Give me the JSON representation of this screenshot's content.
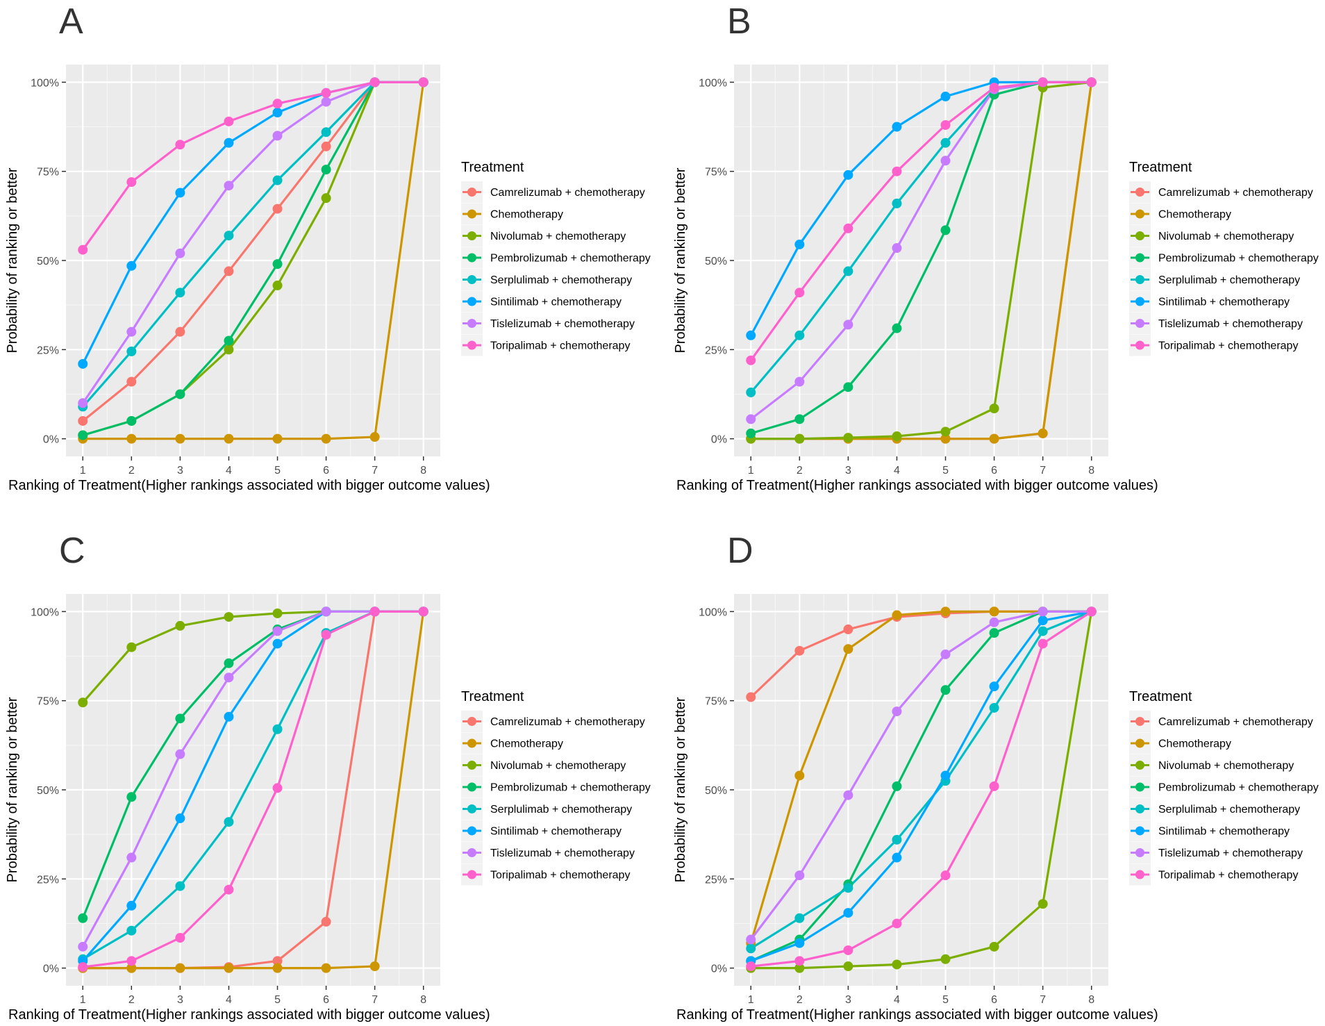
{
  "colors": {
    "Camrelizumab + chemotherapy": "#F8766D",
    "Chemotherapy": "#CD9600",
    "Nivolumab + chemotherapy": "#7CAE00",
    "Pembrolizumab + chemotherapy": "#00BE67",
    "Serplulimab + chemotherapy": "#00BFC4",
    "Sintilimab + chemotherapy": "#00A9FF",
    "Tislelizumab + chemotherapy": "#C77CFF",
    "Toripalimab + chemotherapy": "#FF61CC"
  },
  "chart_data": [
    {
      "panel": "A",
      "type": "line",
      "xlabel": "Ranking of Treatment(Higher rankings associated with bigger outcome values)",
      "ylabel": "Probability of ranking or better",
      "x": [
        1,
        2,
        3,
        4,
        5,
        6,
        7,
        8
      ],
      "yticks": [
        "0%",
        "25%",
        "50%",
        "75%",
        "100%"
      ],
      "ylim": [
        0,
        100
      ],
      "legend_title": "Treatment",
      "series": [
        {
          "name": "Camrelizumab + chemotherapy",
          "values": [
            5,
            16,
            30,
            47,
            64.5,
            82,
            100,
            100
          ]
        },
        {
          "name": "Chemotherapy",
          "values": [
            0,
            0,
            0,
            0,
            0,
            0,
            0.5,
            100
          ]
        },
        {
          "name": "Nivolumab + chemotherapy",
          "values": [
            1,
            5,
            12.5,
            25,
            43,
            67.5,
            100,
            100
          ]
        },
        {
          "name": "Pembrolizumab + chemotherapy",
          "values": [
            1,
            5,
            12.5,
            27.5,
            49,
            75.5,
            100,
            100
          ]
        },
        {
          "name": "Serplulimab + chemotherapy",
          "values": [
            9,
            24.5,
            41,
            57,
            72.5,
            86,
            100,
            100
          ]
        },
        {
          "name": "Sintilimab + chemotherapy",
          "values": [
            21,
            48.5,
            69,
            83,
            91.5,
            97,
            100,
            100
          ]
        },
        {
          "name": "Tislelizumab + chemotherapy",
          "values": [
            10,
            30,
            52,
            71,
            85,
            94.5,
            100,
            100
          ]
        },
        {
          "name": "Toripalimab + chemotherapy",
          "values": [
            53,
            72,
            82.5,
            89,
            94,
            97,
            100,
            100
          ]
        }
      ]
    },
    {
      "panel": "B",
      "type": "line",
      "xlabel": "Ranking of Treatment(Higher rankings associated with bigger outcome values)",
      "ylabel": "Probability of ranking or better",
      "x": [
        1,
        2,
        3,
        4,
        5,
        6,
        7,
        8
      ],
      "yticks": [
        "0%",
        "25%",
        "50%",
        "75%",
        "100%"
      ],
      "ylim": [
        0,
        100
      ],
      "legend_title": "Treatment",
      "series": [
        {
          "name": "Camrelizumab + chemotherapy",
          "values": [
            0,
            0,
            0,
            0,
            0,
            0,
            1.5,
            100
          ]
        },
        {
          "name": "Chemotherapy",
          "values": [
            0,
            0,
            0,
            0,
            0,
            0,
            1.5,
            100
          ]
        },
        {
          "name": "Nivolumab + chemotherapy",
          "values": [
            0,
            0,
            0.3,
            0.7,
            2,
            8.5,
            98.5,
            100
          ]
        },
        {
          "name": "Pembrolizumab + chemotherapy",
          "values": [
            1.5,
            5.5,
            14.5,
            31,
            58.5,
            96.5,
            100,
            100
          ]
        },
        {
          "name": "Serplulimab + chemotherapy",
          "values": [
            13,
            29,
            47,
            66,
            83,
            98,
            100,
            100
          ]
        },
        {
          "name": "Sintilimab + chemotherapy",
          "values": [
            29,
            54.5,
            74,
            87.5,
            96,
            100,
            100,
            100
          ]
        },
        {
          "name": "Tislelizumab + chemotherapy",
          "values": [
            5.5,
            16,
            32,
            53.5,
            78,
            98,
            100,
            100
          ]
        },
        {
          "name": "Toripalimab + chemotherapy",
          "values": [
            22,
            41,
            59,
            75,
            88,
            98.5,
            100,
            100
          ]
        }
      ]
    },
    {
      "panel": "C",
      "type": "line",
      "xlabel": "Ranking of Treatment(Higher rankings associated with bigger outcome values)",
      "ylabel": "Probability of ranking or better",
      "x": [
        1,
        2,
        3,
        4,
        5,
        6,
        7,
        8
      ],
      "yticks": [
        "0%",
        "25%",
        "50%",
        "75%",
        "100%"
      ],
      "ylim": [
        0,
        100
      ],
      "legend_title": "Treatment",
      "series": [
        {
          "name": "Camrelizumab + chemotherapy",
          "values": [
            0,
            0,
            0,
            0.3,
            2,
            13,
            100,
            100
          ]
        },
        {
          "name": "Chemotherapy",
          "values": [
            0,
            0,
            0,
            0,
            0,
            0,
            0.5,
            100
          ]
        },
        {
          "name": "Nivolumab + chemotherapy",
          "values": [
            74.5,
            90,
            96,
            98.5,
            99.5,
            100,
            100,
            100
          ]
        },
        {
          "name": "Pembrolizumab + chemotherapy",
          "values": [
            14,
            48,
            70,
            85.5,
            95,
            100,
            100,
            100
          ]
        },
        {
          "name": "Serplulimab + chemotherapy",
          "values": [
            2.5,
            10.5,
            23,
            41,
            67,
            94,
            100,
            100
          ]
        },
        {
          "name": "Sintilimab + chemotherapy",
          "values": [
            2,
            17.5,
            42,
            70.5,
            91,
            100,
            100,
            100
          ]
        },
        {
          "name": "Tislelizumab + chemotherapy",
          "values": [
            6,
            31,
            60,
            81.5,
            94.5,
            100,
            100,
            100
          ]
        },
        {
          "name": "Toripalimab + chemotherapy",
          "values": [
            0.3,
            2,
            8.5,
            22,
            50.5,
            93.5,
            100,
            100
          ]
        }
      ]
    },
    {
      "panel": "D",
      "type": "line",
      "xlabel": "Ranking of Treatment(Higher rankings associated with bigger outcome values)",
      "ylabel": "Probability of ranking or better",
      "x": [
        1,
        2,
        3,
        4,
        5,
        6,
        7,
        8
      ],
      "yticks": [
        "0%",
        "25%",
        "50%",
        "75%",
        "100%"
      ],
      "ylim": [
        0,
        100
      ],
      "legend_title": "Treatment",
      "series": [
        {
          "name": "Camrelizumab + chemotherapy",
          "values": [
            76,
            89,
            95,
            98.5,
            99.5,
            100,
            100,
            100
          ]
        },
        {
          "name": "Chemotherapy",
          "values": [
            7,
            54,
            89.5,
            99,
            100,
            100,
            100,
            100
          ]
        },
        {
          "name": "Nivolumab + chemotherapy",
          "values": [
            0,
            0,
            0.5,
            1,
            2.5,
            6,
            18,
            100
          ]
        },
        {
          "name": "Pembrolizumab + chemotherapy",
          "values": [
            2,
            8,
            23.5,
            51,
            78,
            94,
            100,
            100
          ]
        },
        {
          "name": "Serplulimab + chemotherapy",
          "values": [
            5.5,
            14,
            22.5,
            36,
            52.5,
            73,
            94.5,
            100
          ]
        },
        {
          "name": "Sintilimab + chemotherapy",
          "values": [
            2,
            7,
            15.5,
            31,
            54,
            79,
            97.5,
            100
          ]
        },
        {
          "name": "Tislelizumab + chemotherapy",
          "values": [
            8,
            26,
            48.5,
            72,
            88,
            97,
            100,
            100
          ]
        },
        {
          "name": "Toripalimab + chemotherapy",
          "values": [
            0.5,
            2,
            5,
            12.5,
            26,
            51,
            91,
            100
          ]
        }
      ]
    }
  ]
}
